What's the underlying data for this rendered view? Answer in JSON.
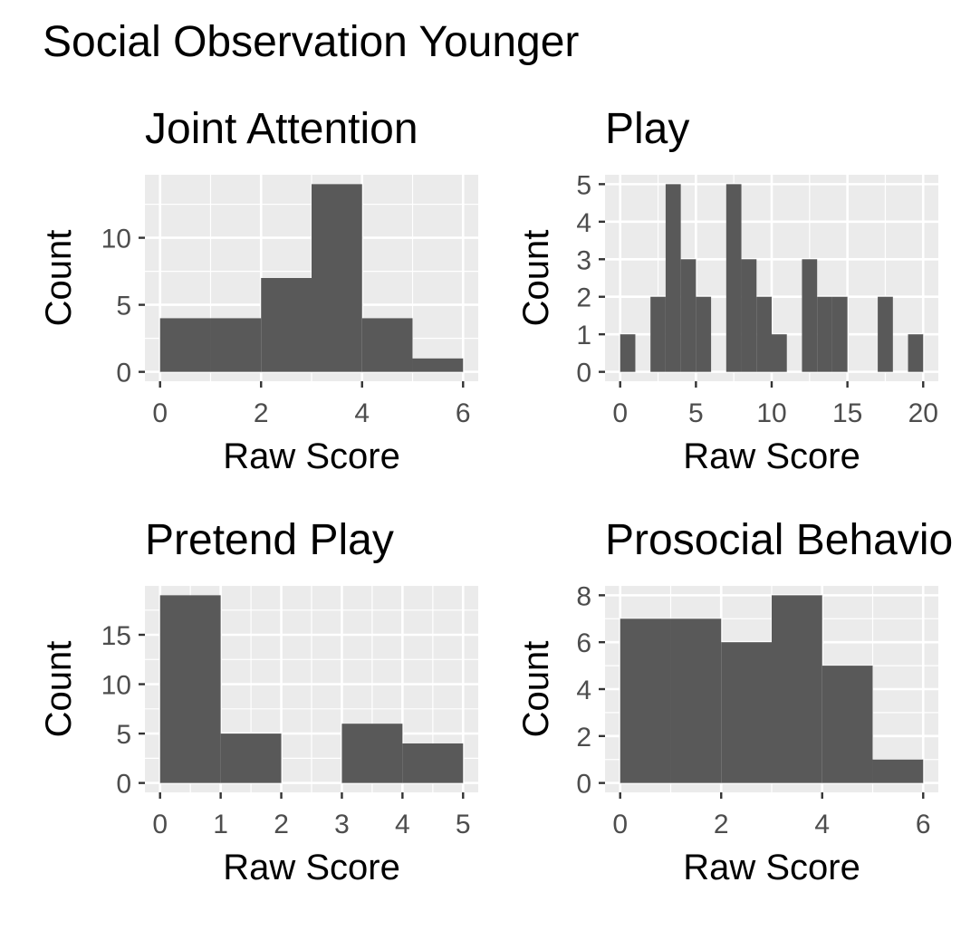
{
  "figure_title": "Social Observation Younger",
  "colors": {
    "panel_bg": "#ebebeb",
    "grid": "#ffffff",
    "bar": "#595959",
    "tick_text": "#4d4d4d",
    "tick_mark": "#333333"
  },
  "chart_data": [
    {
      "type": "bar",
      "title": "Joint Attention",
      "xlabel": "Raw Score",
      "ylabel": "Count",
      "bin_edges": [
        0,
        1,
        2,
        3,
        4,
        5,
        6
      ],
      "values": [
        4,
        4,
        7,
        14,
        4,
        1
      ],
      "xlim": [
        -0.3,
        6.3
      ],
      "ylim": [
        -0.7,
        14.7
      ],
      "xticks": [
        0,
        2,
        4,
        6
      ],
      "yticks": [
        0,
        5,
        10
      ],
      "xminor": [
        1,
        3,
        5
      ],
      "yminor": [
        2.5,
        7.5,
        12.5
      ],
      "grid": true
    },
    {
      "type": "bar",
      "title": "Play",
      "xlabel": "Raw Score",
      "ylabel": "Count",
      "bin_edges": [
        0,
        1,
        2,
        3,
        4,
        5,
        6,
        7,
        8,
        9,
        10,
        11,
        12,
        13,
        14,
        15,
        16,
        17,
        18,
        19,
        20
      ],
      "values": [
        1,
        0,
        2,
        5,
        3,
        2,
        0,
        5,
        3,
        2,
        1,
        0,
        3,
        2,
        2,
        0,
        0,
        2,
        0,
        1
      ],
      "xlim": [
        -1,
        21
      ],
      "ylim": [
        -0.25,
        5.25
      ],
      "xticks": [
        0,
        5,
        10,
        15,
        20
      ],
      "yticks": [
        0,
        1,
        2,
        3,
        4,
        5
      ],
      "xminor": [
        2.5,
        7.5,
        12.5,
        17.5
      ],
      "yminor": [],
      "grid": true
    },
    {
      "type": "bar",
      "title": "Pretend Play",
      "xlabel": "Raw Score",
      "ylabel": "Count",
      "bin_edges": [
        0,
        1,
        2,
        3,
        4,
        5
      ],
      "values": [
        19,
        5,
        0,
        6,
        4
      ],
      "xlim": [
        -0.25,
        5.25
      ],
      "ylim": [
        -0.95,
        19.95
      ],
      "xticks": [
        0,
        1,
        2,
        3,
        4,
        5
      ],
      "yticks": [
        0,
        5,
        10,
        15
      ],
      "xminor": [
        0.5,
        1.5,
        2.5,
        3.5,
        4.5
      ],
      "yminor": [
        2.5,
        7.5,
        12.5,
        17.5
      ],
      "grid": true
    },
    {
      "type": "bar",
      "title": "Prosocial Behavio",
      "xlabel": "Raw Score",
      "ylabel": "Count",
      "bin_edges": [
        0,
        1,
        2,
        3,
        4,
        5,
        6
      ],
      "values": [
        7,
        7,
        6,
        8,
        5,
        1
      ],
      "xlim": [
        -0.3,
        6.3
      ],
      "ylim": [
        -0.4,
        8.4
      ],
      "xticks": [
        0,
        2,
        4,
        6
      ],
      "yticks": [
        0,
        2,
        4,
        6,
        8
      ],
      "xminor": [
        1,
        3,
        5
      ],
      "yminor": [
        1,
        3,
        5,
        7
      ],
      "grid": true
    }
  ]
}
